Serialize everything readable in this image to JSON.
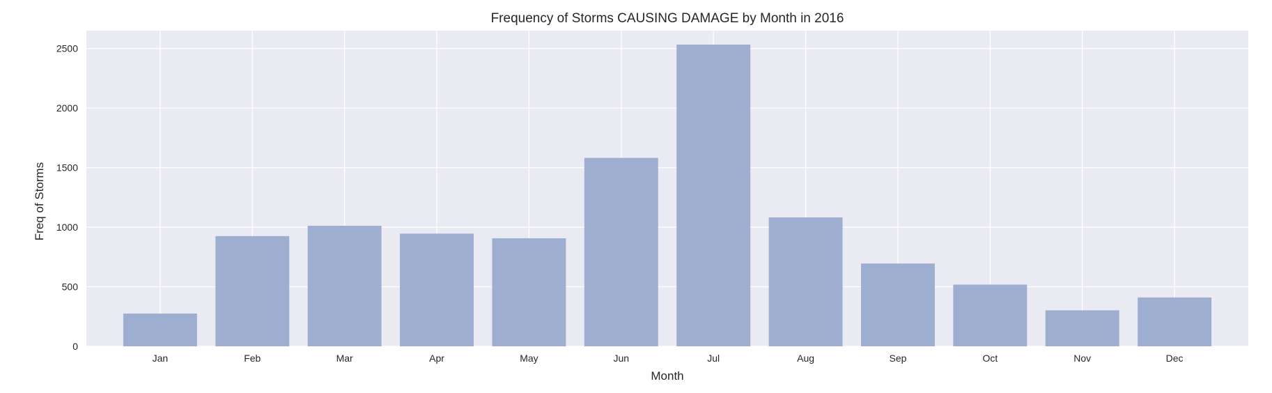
{
  "chart_data": {
    "type": "bar",
    "title": "Frequency of Storms CAUSING DAMAGE by Month in 2016",
    "xlabel": "Month",
    "ylabel": "Freq of Storms",
    "categories": [
      "Jan",
      "Feb",
      "Mar",
      "Apr",
      "May",
      "Jun",
      "Jul",
      "Aug",
      "Sep",
      "Oct",
      "Nov",
      "Dec"
    ],
    "values": [
      275,
      925,
      1012,
      946,
      907,
      1582,
      2533,
      1082,
      695,
      518,
      302,
      410
    ],
    "ylim": [
      0,
      2650
    ],
    "yticks": [
      0,
      500,
      1000,
      1500,
      2000,
      2500
    ],
    "grid": true,
    "colors": {
      "plot_background": "#eaeaf2",
      "grid": "#ffffff",
      "bar": "#9daed0"
    }
  }
}
